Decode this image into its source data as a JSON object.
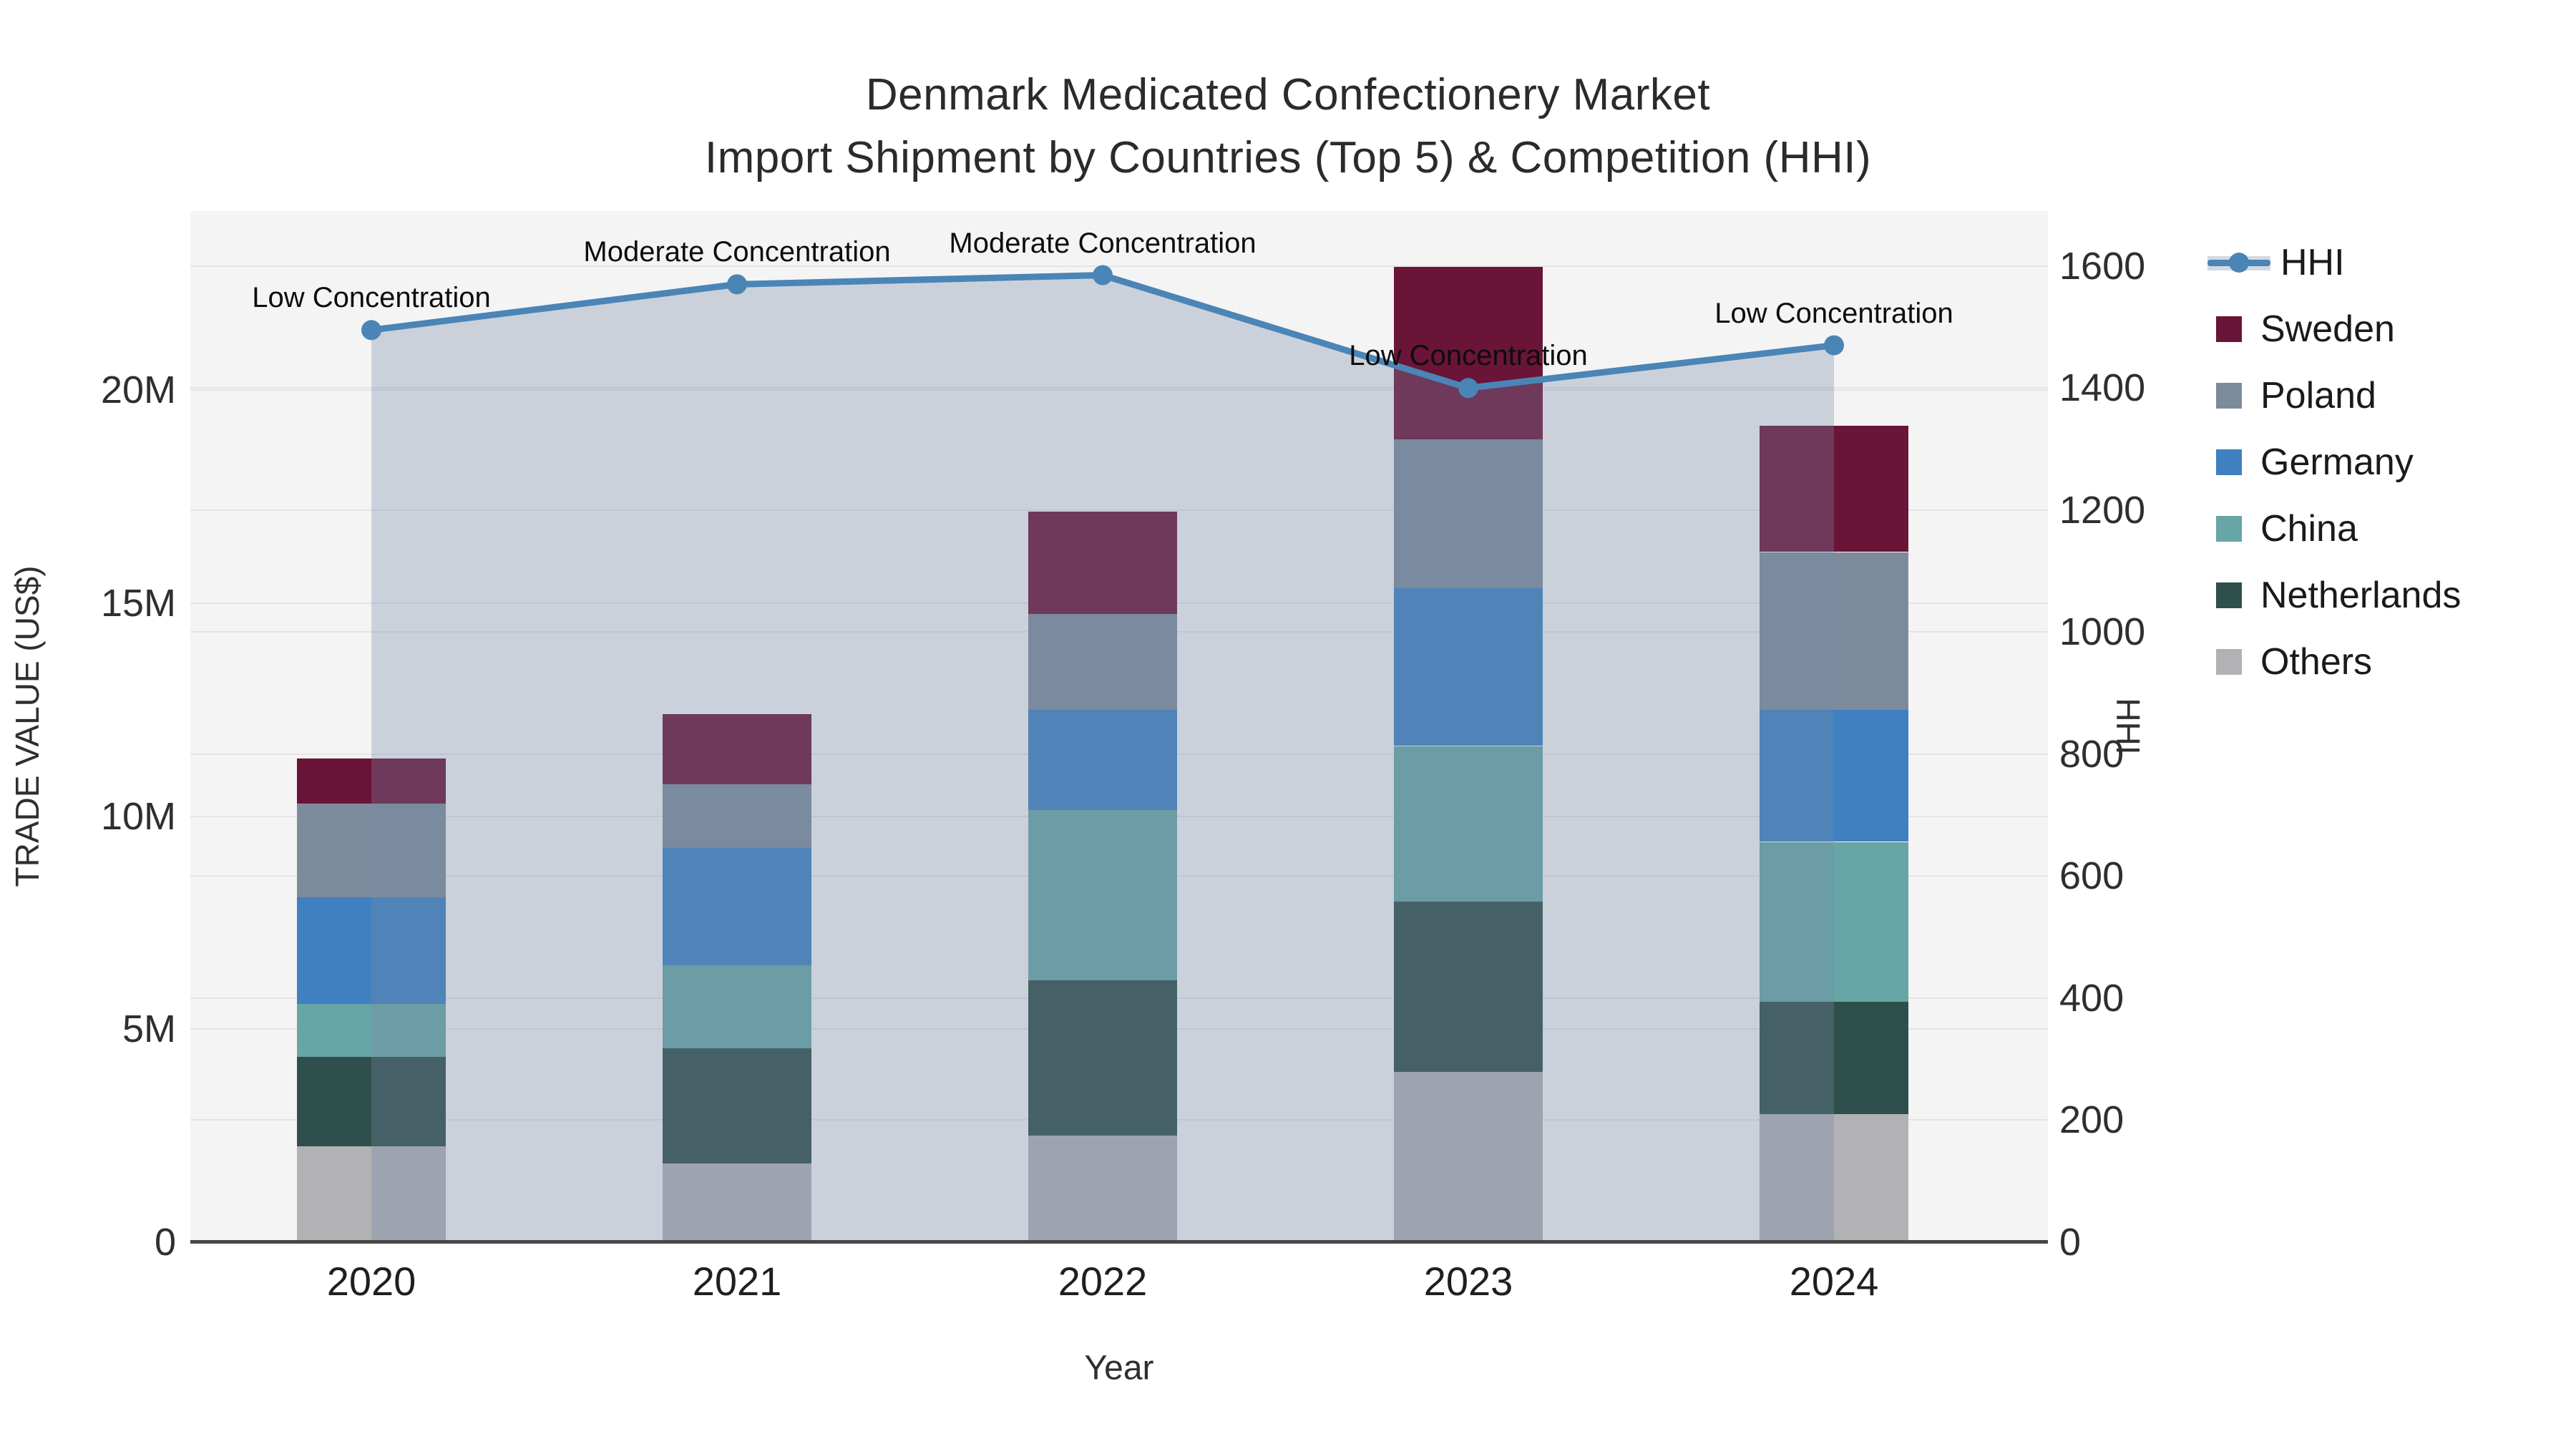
{
  "title": {
    "line1": "Denmark Medicated Confectionery Market",
    "line2": "Import Shipment by Countries (Top 5) & Competition (HHI)"
  },
  "axes": {
    "x": {
      "title": "Year",
      "ticks": [
        "2020",
        "2021",
        "2022",
        "2023",
        "2024"
      ]
    },
    "y_left": {
      "title": "TRADE VALUE (US$)"
    },
    "y_right": {
      "title": "HHI"
    }
  },
  "legend": {
    "entries": [
      "HHI",
      "Sweden",
      "Poland",
      "Germany",
      "China",
      "Netherlands",
      "Others"
    ]
  },
  "colors": {
    "plot_background": "#f4f4f5",
    "gridline": "#e4e4e6",
    "hhi_line": "#4A85B6",
    "hhi_fill": "rgba(119,138,166,0.32)"
  },
  "chart_data": {
    "type": "combo",
    "subtypes": [
      "stacked-bar",
      "line-area"
    ],
    "title": "Denmark Medicated Confectionery Market — Import Shipment by Countries (Top 5) & Competition (HHI)",
    "xlabel": "Year",
    "ylabel_left": "TRADE VALUE (US$)",
    "ylabel_right": "HHI",
    "categories": [
      "2020",
      "2021",
      "2022",
      "2023",
      "2024"
    ],
    "bar_value_unit": "million US$",
    "series": [
      {
        "name": "Sweden",
        "color": "#6A1437",
        "values": [
          1.05,
          1.65,
          2.4,
          4.05,
          2.95
        ]
      },
      {
        "name": "Poland",
        "color": "#7C8B9C",
        "values": [
          2.2,
          1.5,
          2.25,
          3.5,
          3.7
        ]
      },
      {
        "name": "Germany",
        "color": "#3F80C0",
        "values": [
          2.5,
          2.75,
          2.35,
          3.7,
          3.1
        ]
      },
      {
        "name": "China",
        "color": "#68A5A6",
        "values": [
          1.25,
          1.95,
          4.0,
          3.65,
          3.75
        ]
      },
      {
        "name": "Netherlands",
        "color": "#2E4F4B",
        "values": [
          2.1,
          2.7,
          3.65,
          4.0,
          2.65
        ]
      },
      {
        "name": "Others",
        "color": "#B2B2B4",
        "values": [
          2.25,
          1.85,
          2.5,
          4.0,
          3.0
        ]
      }
    ],
    "stack_order_bottom_to_top": [
      "Others",
      "Netherlands",
      "China",
      "Germany",
      "Poland",
      "Sweden"
    ],
    "line_series": {
      "name": "HHI",
      "color": "#4A85B6",
      "fill": "rgba(119,138,166,0.32)",
      "values": [
        1495,
        1570,
        1585,
        1400,
        1470
      ]
    },
    "point_annotations": [
      "Low Concentration",
      "Moderate Concentration",
      "Moderate Concentration",
      "Low Concentration",
      "Low Concentration"
    ],
    "ylim_left": [
      0,
      24.2
    ],
    "yticks_left": [
      {
        "label": "0",
        "value": 0
      },
      {
        "label": "5M",
        "value": 5
      },
      {
        "label": "10M",
        "value": 10
      },
      {
        "label": "15M",
        "value": 15
      },
      {
        "label": "20M",
        "value": 20
      }
    ],
    "ylim_right": [
      0,
      1690
    ],
    "yticks_right": [
      {
        "label": "0",
        "value": 0
      },
      {
        "label": "200",
        "value": 200
      },
      {
        "label": "400",
        "value": 400
      },
      {
        "label": "600",
        "value": 600
      },
      {
        "label": "800",
        "value": 800
      },
      {
        "label": "1000",
        "value": 1000
      },
      {
        "label": "1200",
        "value": 1200
      },
      {
        "label": "1400",
        "value": 1400
      },
      {
        "label": "1600",
        "value": 1600
      }
    ],
    "grid": true,
    "legend_position": "right"
  }
}
